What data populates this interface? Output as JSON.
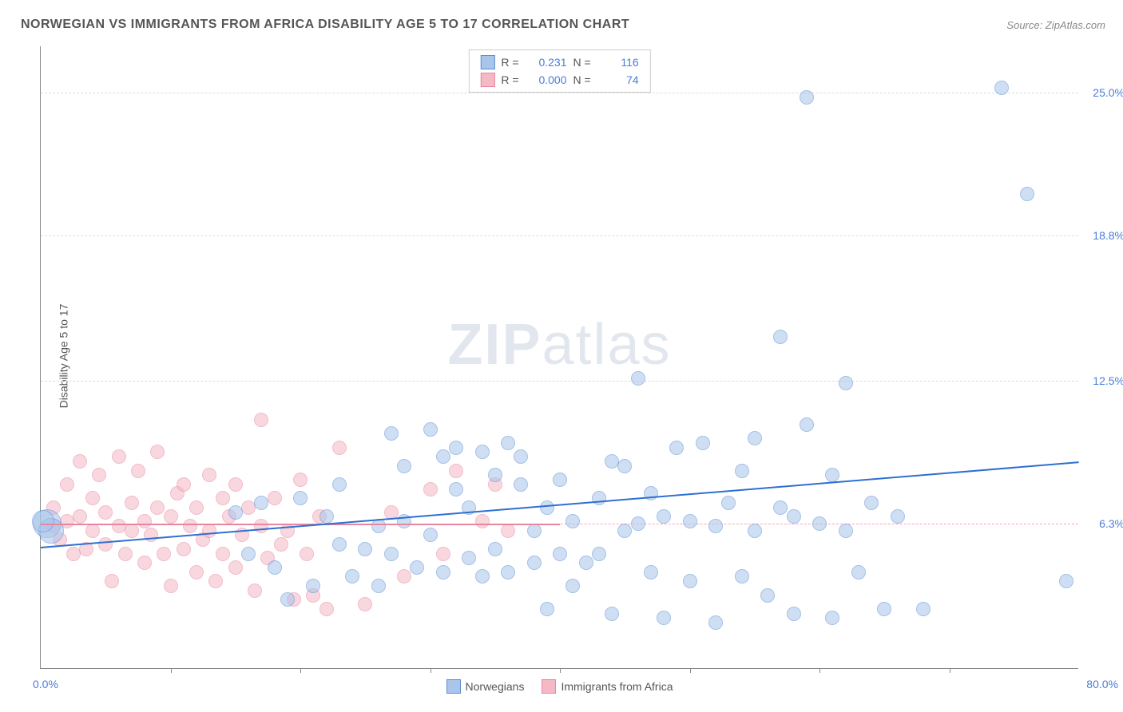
{
  "title": "NORWEGIAN VS IMMIGRANTS FROM AFRICA DISABILITY AGE 5 TO 17 CORRELATION CHART",
  "source_label": "Source:",
  "source_value": "ZipAtlas.com",
  "watermark_zip": "ZIP",
  "watermark_atlas": "atlas",
  "chart": {
    "type": "scatter",
    "background_color": "#ffffff",
    "grid_color": "#dddddd",
    "axis_color": "#888888",
    "yaxis": {
      "label": "Disability Age 5 to 17",
      "label_fontsize": 14,
      "label_color": "#555555",
      "ticks": [
        {
          "value": 6.3,
          "label": "6.3%"
        },
        {
          "value": 12.5,
          "label": "12.5%"
        },
        {
          "value": 18.8,
          "label": "18.8%"
        },
        {
          "value": 25.0,
          "label": "25.0%"
        }
      ],
      "tick_color": "#4a7dd9",
      "tick_fontsize": 14,
      "min": 0.0,
      "max": 27.0
    },
    "xaxis": {
      "min": 0.0,
      "max": 80.0,
      "min_label": "0.0%",
      "max_label": "80.0%",
      "tick_positions": [
        10,
        20,
        30,
        40,
        50,
        60,
        70
      ],
      "tick_color": "#4a7dd9",
      "tick_fontsize": 14
    },
    "reference_line_pink": {
      "y": 6.3,
      "color": "#f7a8b8",
      "dash": true
    },
    "series": [
      {
        "name": "Norwegians",
        "fill_color": "#a9c6ea",
        "stroke_color": "#5b8dd6",
        "fill_opacity": 0.55,
        "marker_radius": 9,
        "trendline": {
          "color": "#2f6fd0",
          "width": 2,
          "y_at_xmin": 5.3,
          "y_at_xmax": 9.0
        },
        "stats": {
          "R": "0.231",
          "N": "116"
        },
        "points": [
          {
            "x": 0.5,
            "y": 6.3,
            "r": 18
          },
          {
            "x": 0.8,
            "y": 6.0,
            "r": 16
          },
          {
            "x": 0.2,
            "y": 6.4,
            "r": 14
          },
          {
            "x": 15,
            "y": 6.8
          },
          {
            "x": 16,
            "y": 5.0
          },
          {
            "x": 17,
            "y": 7.2
          },
          {
            "x": 18,
            "y": 4.4
          },
          {
            "x": 19,
            "y": 3.0
          },
          {
            "x": 20,
            "y": 7.4
          },
          {
            "x": 21,
            "y": 3.6
          },
          {
            "x": 22,
            "y": 6.6
          },
          {
            "x": 23,
            "y": 5.4
          },
          {
            "x": 23,
            "y": 8.0
          },
          {
            "x": 24,
            "y": 4.0
          },
          {
            "x": 25,
            "y": 5.2
          },
          {
            "x": 26,
            "y": 6.2
          },
          {
            "x": 26,
            "y": 3.6
          },
          {
            "x": 27,
            "y": 10.2
          },
          {
            "x": 27,
            "y": 5.0
          },
          {
            "x": 28,
            "y": 8.8
          },
          {
            "x": 28,
            "y": 6.4
          },
          {
            "x": 29,
            "y": 4.4
          },
          {
            "x": 30,
            "y": 10.4
          },
          {
            "x": 30,
            "y": 5.8
          },
          {
            "x": 31,
            "y": 9.2
          },
          {
            "x": 31,
            "y": 4.2
          },
          {
            "x": 32,
            "y": 7.8
          },
          {
            "x": 32,
            "y": 9.6
          },
          {
            "x": 33,
            "y": 4.8
          },
          {
            "x": 33,
            "y": 7.0
          },
          {
            "x": 34,
            "y": 9.4
          },
          {
            "x": 34,
            "y": 4.0
          },
          {
            "x": 35,
            "y": 5.2
          },
          {
            "x": 35,
            "y": 8.4
          },
          {
            "x": 36,
            "y": 9.8
          },
          {
            "x": 36,
            "y": 4.2
          },
          {
            "x": 37,
            "y": 8.0
          },
          {
            "x": 37,
            "y": 9.2
          },
          {
            "x": 38,
            "y": 4.6
          },
          {
            "x": 38,
            "y": 6.0
          },
          {
            "x": 39,
            "y": 7.0
          },
          {
            "x": 39,
            "y": 2.6
          },
          {
            "x": 40,
            "y": 5.0
          },
          {
            "x": 40,
            "y": 8.2
          },
          {
            "x": 41,
            "y": 3.6
          },
          {
            "x": 41,
            "y": 6.4
          },
          {
            "x": 42,
            "y": 4.6
          },
          {
            "x": 43,
            "y": 7.4
          },
          {
            "x": 43,
            "y": 5.0
          },
          {
            "x": 44,
            "y": 9.0
          },
          {
            "x": 44,
            "y": 2.4
          },
          {
            "x": 45,
            "y": 6.0
          },
          {
            "x": 45,
            "y": 8.8
          },
          {
            "x": 46,
            "y": 12.6
          },
          {
            "x": 46,
            "y": 6.3
          },
          {
            "x": 47,
            "y": 4.2
          },
          {
            "x": 47,
            "y": 7.6
          },
          {
            "x": 48,
            "y": 2.2
          },
          {
            "x": 48,
            "y": 6.6
          },
          {
            "x": 49,
            "y": 9.6
          },
          {
            "x": 50,
            "y": 6.4
          },
          {
            "x": 50,
            "y": 3.8
          },
          {
            "x": 51,
            "y": 9.8
          },
          {
            "x": 52,
            "y": 6.2
          },
          {
            "x": 52,
            "y": 2.0
          },
          {
            "x": 53,
            "y": 7.2
          },
          {
            "x": 54,
            "y": 4.0
          },
          {
            "x": 54,
            "y": 8.6
          },
          {
            "x": 55,
            "y": 6.0
          },
          {
            "x": 55,
            "y": 10.0
          },
          {
            "x": 56,
            "y": 3.2
          },
          {
            "x": 57,
            "y": 7.0
          },
          {
            "x": 57,
            "y": 14.4
          },
          {
            "x": 58,
            "y": 2.4
          },
          {
            "x": 58,
            "y": 6.6
          },
          {
            "x": 59,
            "y": 10.6
          },
          {
            "x": 59,
            "y": 24.8
          },
          {
            "x": 60,
            "y": 6.3
          },
          {
            "x": 61,
            "y": 8.4
          },
          {
            "x": 61,
            "y": 2.2
          },
          {
            "x": 62,
            "y": 6.0
          },
          {
            "x": 62,
            "y": 12.4
          },
          {
            "x": 63,
            "y": 4.2
          },
          {
            "x": 64,
            "y": 7.2
          },
          {
            "x": 65,
            "y": 2.6
          },
          {
            "x": 66,
            "y": 6.6
          },
          {
            "x": 68,
            "y": 2.6
          },
          {
            "x": 74,
            "y": 25.2
          },
          {
            "x": 76,
            "y": 20.6
          },
          {
            "x": 79,
            "y": 3.8
          }
        ]
      },
      {
        "name": "Immigrants from Africa",
        "fill_color": "#f5b8c5",
        "stroke_color": "#e886a0",
        "fill_opacity": 0.55,
        "marker_radius": 9,
        "trendline": {
          "color": "#e886a0",
          "width": 2,
          "x_start": 0,
          "x_end": 40,
          "y": 6.3
        },
        "stats": {
          "R": "0.000",
          "N": "74"
        },
        "points": [
          {
            "x": 1,
            "y": 6.2
          },
          {
            "x": 1,
            "y": 7.0
          },
          {
            "x": 1.5,
            "y": 5.6
          },
          {
            "x": 2,
            "y": 6.4
          },
          {
            "x": 2,
            "y": 8.0
          },
          {
            "x": 2.5,
            "y": 5.0
          },
          {
            "x": 3,
            "y": 9.0
          },
          {
            "x": 3,
            "y": 6.6
          },
          {
            "x": 3.5,
            "y": 5.2
          },
          {
            "x": 4,
            "y": 7.4
          },
          {
            "x": 4,
            "y": 6.0
          },
          {
            "x": 4.5,
            "y": 8.4
          },
          {
            "x": 5,
            "y": 5.4
          },
          {
            "x": 5,
            "y": 6.8
          },
          {
            "x": 5.5,
            "y": 3.8
          },
          {
            "x": 6,
            "y": 9.2
          },
          {
            "x": 6,
            "y": 6.2
          },
          {
            "x": 6.5,
            "y": 5.0
          },
          {
            "x": 7,
            "y": 7.2
          },
          {
            "x": 7,
            "y": 6.0
          },
          {
            "x": 7.5,
            "y": 8.6
          },
          {
            "x": 8,
            "y": 4.6
          },
          {
            "x": 8,
            "y": 6.4
          },
          {
            "x": 8.5,
            "y": 5.8
          },
          {
            "x": 9,
            "y": 7.0
          },
          {
            "x": 9,
            "y": 9.4
          },
          {
            "x": 9.5,
            "y": 5.0
          },
          {
            "x": 10,
            "y": 6.6
          },
          {
            "x": 10,
            "y": 3.6
          },
          {
            "x": 10.5,
            "y": 7.6
          },
          {
            "x": 11,
            "y": 5.2
          },
          {
            "x": 11,
            "y": 8.0
          },
          {
            "x": 11.5,
            "y": 6.2
          },
          {
            "x": 12,
            "y": 4.2
          },
          {
            "x": 12,
            "y": 7.0
          },
          {
            "x": 12.5,
            "y": 5.6
          },
          {
            "x": 13,
            "y": 8.4
          },
          {
            "x": 13,
            "y": 6.0
          },
          {
            "x": 13.5,
            "y": 3.8
          },
          {
            "x": 14,
            "y": 7.4
          },
          {
            "x": 14,
            "y": 5.0
          },
          {
            "x": 14.5,
            "y": 6.6
          },
          {
            "x": 15,
            "y": 4.4
          },
          {
            "x": 15,
            "y": 8.0
          },
          {
            "x": 15.5,
            "y": 5.8
          },
          {
            "x": 16,
            "y": 7.0
          },
          {
            "x": 16.5,
            "y": 3.4
          },
          {
            "x": 17,
            "y": 10.8
          },
          {
            "x": 17,
            "y": 6.2
          },
          {
            "x": 17.5,
            "y": 4.8
          },
          {
            "x": 18,
            "y": 7.4
          },
          {
            "x": 18.5,
            "y": 5.4
          },
          {
            "x": 19,
            "y": 6.0
          },
          {
            "x": 19.5,
            "y": 3.0
          },
          {
            "x": 20,
            "y": 8.2
          },
          {
            "x": 20.5,
            "y": 5.0
          },
          {
            "x": 21,
            "y": 3.2
          },
          {
            "x": 21.5,
            "y": 6.6
          },
          {
            "x": 22,
            "y": 2.6
          },
          {
            "x": 23,
            "y": 9.6
          },
          {
            "x": 25,
            "y": 2.8
          },
          {
            "x": 27,
            "y": 6.8
          },
          {
            "x": 28,
            "y": 4.0
          },
          {
            "x": 30,
            "y": 7.8
          },
          {
            "x": 31,
            "y": 5.0
          },
          {
            "x": 32,
            "y": 8.6
          },
          {
            "x": 34,
            "y": 6.4
          },
          {
            "x": 35,
            "y": 8.0
          },
          {
            "x": 36,
            "y": 6.0
          }
        ]
      }
    ],
    "legend_top": {
      "R_label": "R =",
      "N_label": "N =",
      "value_color": "#4a7dd9",
      "label_color": "#555555",
      "border_color": "#cccccc",
      "background": "#ffffff"
    },
    "legend_bottom": {
      "items": [
        {
          "label": "Norwegians",
          "fill": "#a9c6ea",
          "stroke": "#5b8dd6"
        },
        {
          "label": "Immigrants from Africa",
          "fill": "#f5b8c5",
          "stroke": "#e886a0"
        }
      ],
      "label_color": "#555555"
    }
  }
}
